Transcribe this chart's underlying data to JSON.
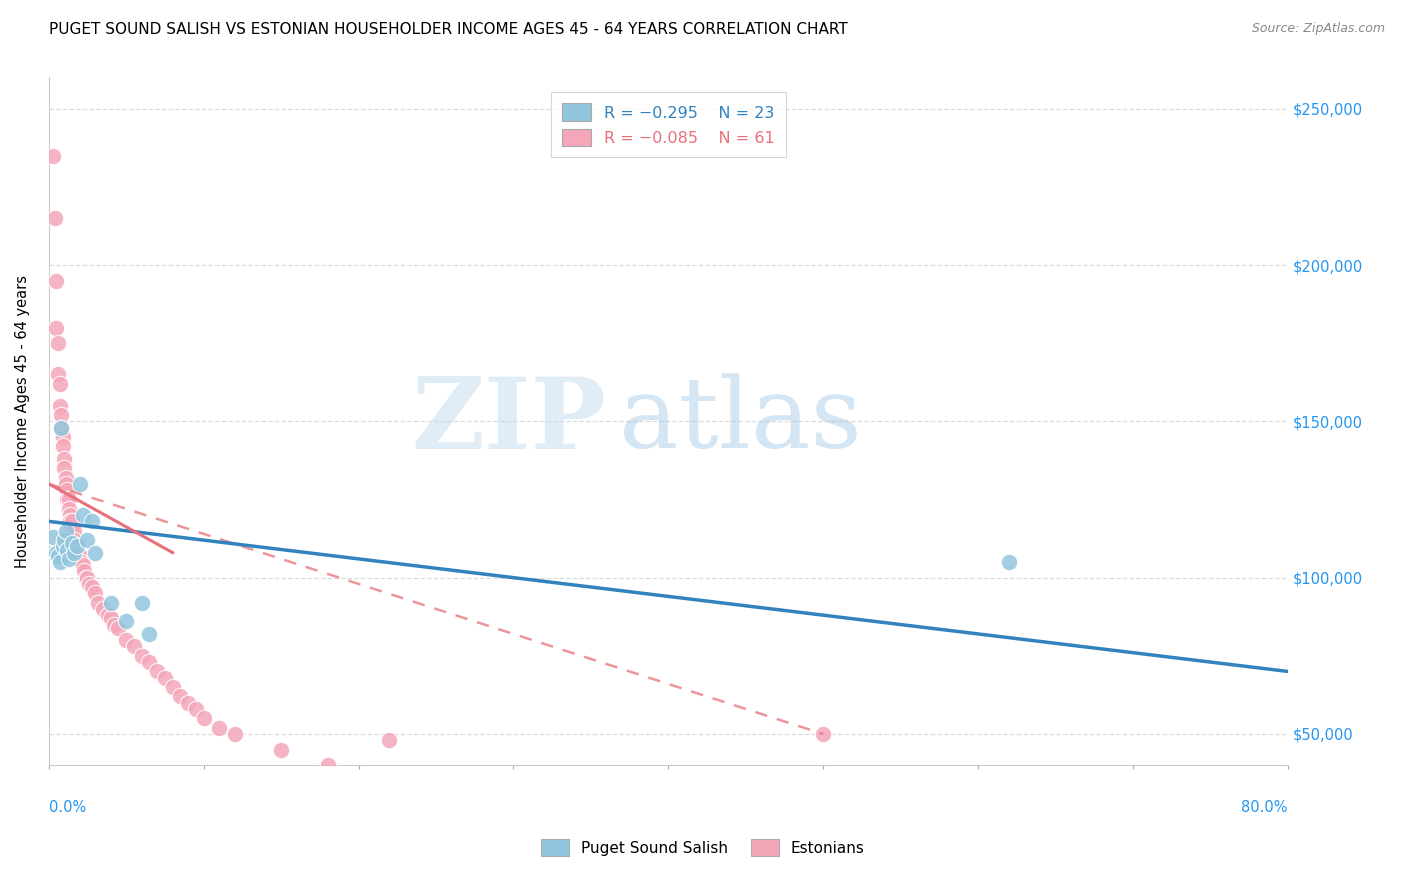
{
  "title": "PUGET SOUND SALISH VS ESTONIAN HOUSEHOLDER INCOME AGES 45 - 64 YEARS CORRELATION CHART",
  "source": "Source: ZipAtlas.com",
  "ylabel": "Householder Income Ages 45 - 64 years",
  "xlim": [
    0.0,
    0.8
  ],
  "ylim": [
    40000,
    260000
  ],
  "yticks": [
    50000,
    100000,
    150000,
    200000,
    250000
  ],
  "ytick_labels_right": [
    "$50,000",
    "$100,000",
    "$150,000",
    "$200,000",
    "$250,000"
  ],
  "watermark_zip": "ZIP",
  "watermark_atlas": "atlas",
  "legend_blue_r": "-0.295",
  "legend_blue_n": "23",
  "legend_pink_r": "-0.085",
  "legend_pink_n": "61",
  "legend_label_blue": "Puget Sound Salish",
  "legend_label_pink": "Estonians",
  "blue_color": "#92c5de",
  "pink_color": "#f4a7b9",
  "blue_line_color": "#3182bd",
  "pink_line_color": "#e8707a",
  "blue_scatter_x": [
    0.003,
    0.005,
    0.006,
    0.007,
    0.008,
    0.009,
    0.01,
    0.011,
    0.012,
    0.013,
    0.015,
    0.016,
    0.018,
    0.02,
    0.022,
    0.025,
    0.028,
    0.03,
    0.04,
    0.05,
    0.06,
    0.065,
    0.62
  ],
  "blue_scatter_y": [
    113000,
    108000,
    107000,
    105000,
    148000,
    110000,
    112000,
    115000,
    109000,
    106000,
    111000,
    108000,
    110000,
    130000,
    120000,
    112000,
    118000,
    108000,
    92000,
    86000,
    92000,
    82000,
    105000
  ],
  "pink_scatter_x": [
    0.003,
    0.004,
    0.005,
    0.005,
    0.006,
    0.006,
    0.007,
    0.007,
    0.008,
    0.008,
    0.009,
    0.009,
    0.01,
    0.01,
    0.011,
    0.011,
    0.012,
    0.012,
    0.013,
    0.013,
    0.014,
    0.014,
    0.015,
    0.015,
    0.016,
    0.016,
    0.017,
    0.018,
    0.019,
    0.02,
    0.021,
    0.022,
    0.023,
    0.024,
    0.025,
    0.026,
    0.028,
    0.03,
    0.032,
    0.035,
    0.038,
    0.04,
    0.042,
    0.045,
    0.05,
    0.055,
    0.06,
    0.065,
    0.07,
    0.075,
    0.08,
    0.085,
    0.09,
    0.095,
    0.1,
    0.11,
    0.12,
    0.15,
    0.18,
    0.22,
    0.5
  ],
  "pink_scatter_y": [
    235000,
    215000,
    195000,
    180000,
    175000,
    165000,
    162000,
    155000,
    152000,
    148000,
    145000,
    142000,
    138000,
    135000,
    132000,
    130000,
    128000,
    125000,
    125000,
    122000,
    120000,
    118000,
    118000,
    115000,
    115000,
    112000,
    110000,
    110000,
    108000,
    107000,
    105000,
    104000,
    102000,
    100000,
    100000,
    98000,
    97000,
    95000,
    92000,
    90000,
    88000,
    87000,
    85000,
    84000,
    80000,
    78000,
    75000,
    73000,
    70000,
    68000,
    65000,
    62000,
    60000,
    58000,
    55000,
    52000,
    50000,
    45000,
    40000,
    48000,
    50000
  ],
  "background_color": "#ffffff",
  "grid_color": "#d8d8d8"
}
